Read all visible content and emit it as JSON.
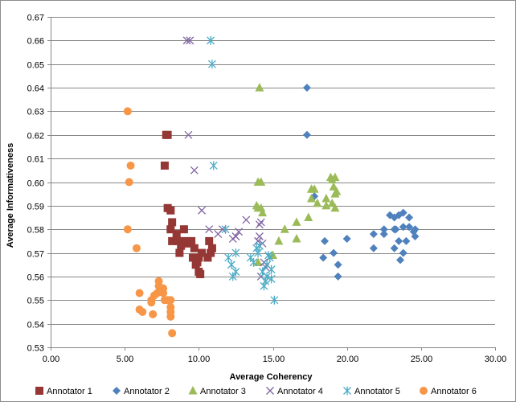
{
  "chart_data": {
    "type": "scatter",
    "title": "",
    "xlabel": "Average Coherency",
    "ylabel": "Average Informativeness",
    "xlim": [
      0,
      30
    ],
    "ylim": [
      0.53,
      0.67
    ],
    "x_ticks": [
      "0.00",
      "5.00",
      "10.00",
      "15.00",
      "20.00",
      "25.00",
      "30.00"
    ],
    "y_ticks": [
      "0.53",
      "0.54",
      "0.55",
      "0.56",
      "0.57",
      "0.58",
      "0.59",
      "0.60",
      "0.61",
      "0.62",
      "0.63",
      "0.64",
      "0.65",
      "0.66",
      "0.67"
    ],
    "grid": "horizontal",
    "legend_position": "bottom",
    "series": [
      {
        "name": "Annotator 1",
        "marker": "square",
        "color": "#953735",
        "points": [
          [
            7.8,
            0.62
          ],
          [
            7.9,
            0.62
          ],
          [
            7.7,
            0.607
          ],
          [
            7.9,
            0.589
          ],
          [
            8.1,
            0.588
          ],
          [
            8.2,
            0.583
          ],
          [
            8.1,
            0.58
          ],
          [
            8.5,
            0.578
          ],
          [
            8.2,
            0.575
          ],
          [
            8.6,
            0.575
          ],
          [
            8.8,
            0.573
          ],
          [
            8.7,
            0.57
          ],
          [
            9.0,
            0.58
          ],
          [
            9.1,
            0.575
          ],
          [
            9.3,
            0.574
          ],
          [
            9.5,
            0.575
          ],
          [
            9.7,
            0.572
          ],
          [
            9.6,
            0.568
          ],
          [
            9.8,
            0.565
          ],
          [
            10.0,
            0.568
          ],
          [
            10.0,
            0.562
          ],
          [
            10.1,
            0.561
          ],
          [
            9.9,
            0.566
          ],
          [
            10.6,
            0.568
          ],
          [
            10.8,
            0.57
          ],
          [
            10.9,
            0.572
          ],
          [
            10.7,
            0.575
          ],
          [
            10.2,
            0.57
          ]
        ]
      },
      {
        "name": "Annotator 2",
        "marker": "diamond",
        "color": "#4f81bd",
        "points": [
          [
            17.3,
            0.64
          ],
          [
            17.3,
            0.62
          ],
          [
            17.8,
            0.594
          ],
          [
            18.5,
            0.575
          ],
          [
            18.4,
            0.568
          ],
          [
            19.1,
            0.57
          ],
          [
            19.4,
            0.565
          ],
          [
            19.4,
            0.56
          ],
          [
            20.0,
            0.576
          ],
          [
            21.8,
            0.578
          ],
          [
            21.8,
            0.572
          ],
          [
            22.5,
            0.58
          ],
          [
            22.5,
            0.578
          ],
          [
            22.9,
            0.586
          ],
          [
            23.2,
            0.585
          ],
          [
            23.5,
            0.586
          ],
          [
            23.8,
            0.587
          ],
          [
            24.2,
            0.585
          ],
          [
            23.2,
            0.58
          ],
          [
            23.8,
            0.581
          ],
          [
            24.2,
            0.581
          ],
          [
            24.5,
            0.579
          ],
          [
            24.6,
            0.58
          ],
          [
            23.5,
            0.575
          ],
          [
            24.0,
            0.575
          ],
          [
            24.6,
            0.577
          ],
          [
            23.2,
            0.572
          ],
          [
            23.8,
            0.57
          ],
          [
            23.6,
            0.567
          ],
          [
            23.3,
            0.58
          ]
        ]
      },
      {
        "name": "Annotator 3",
        "marker": "triangle",
        "color": "#9bbb59",
        "points": [
          [
            14.1,
            0.64
          ],
          [
            14.0,
            0.6
          ],
          [
            14.2,
            0.6
          ],
          [
            13.9,
            0.59
          ],
          [
            14.2,
            0.589
          ],
          [
            14.3,
            0.587
          ],
          [
            15.0,
            0.569
          ],
          [
            15.4,
            0.575
          ],
          [
            15.8,
            0.58
          ],
          [
            16.6,
            0.576
          ],
          [
            16.6,
            0.583
          ],
          [
            17.4,
            0.585
          ],
          [
            17.6,
            0.593
          ],
          [
            17.8,
            0.597
          ],
          [
            18.0,
            0.591
          ],
          [
            17.6,
            0.597
          ],
          [
            18.6,
            0.593
          ],
          [
            18.6,
            0.59
          ],
          [
            18.9,
            0.602
          ],
          [
            19.2,
            0.602
          ],
          [
            19.1,
            0.598
          ],
          [
            19.2,
            0.595
          ],
          [
            19.2,
            0.589
          ],
          [
            19.0,
            0.591
          ],
          [
            19.3,
            0.596
          ],
          [
            19.0,
            0.601
          ],
          [
            14.0,
            0.589
          ],
          [
            14.0,
            0.566
          ]
        ]
      },
      {
        "name": "Annotator 4",
        "marker": "x",
        "color": "#8064a2",
        "points": [
          [
            9.2,
            0.66
          ],
          [
            9.4,
            0.66
          ],
          [
            9.3,
            0.62
          ],
          [
            9.7,
            0.605
          ],
          [
            10.2,
            0.588
          ],
          [
            10.7,
            0.58
          ],
          [
            11.3,
            0.578
          ],
          [
            11.6,
            0.58
          ],
          [
            12.3,
            0.576
          ],
          [
            12.5,
            0.577
          ],
          [
            12.7,
            0.579
          ],
          [
            13.2,
            0.584
          ],
          [
            14.1,
            0.582
          ],
          [
            14.2,
            0.583
          ],
          [
            14.1,
            0.577
          ],
          [
            14.0,
            0.575
          ],
          [
            14.3,
            0.574
          ],
          [
            14.4,
            0.566
          ],
          [
            14.5,
            0.564
          ],
          [
            14.2,
            0.56
          ]
        ]
      },
      {
        "name": "Annotator 5",
        "marker": "star",
        "color": "#4bacc6",
        "points": [
          [
            10.8,
            0.66
          ],
          [
            10.9,
            0.65
          ],
          [
            11.0,
            0.607
          ],
          [
            11.8,
            0.58
          ],
          [
            12.0,
            0.568
          ],
          [
            12.2,
            0.565
          ],
          [
            12.3,
            0.56
          ],
          [
            12.5,
            0.57
          ],
          [
            12.5,
            0.562
          ],
          [
            13.5,
            0.568
          ],
          [
            13.7,
            0.566
          ],
          [
            13.9,
            0.572
          ],
          [
            14.0,
            0.57
          ],
          [
            14.1,
            0.573
          ],
          [
            14.3,
            0.562
          ],
          [
            14.5,
            0.558
          ],
          [
            14.6,
            0.56
          ],
          [
            14.4,
            0.556
          ],
          [
            14.8,
            0.568
          ],
          [
            14.9,
            0.563
          ],
          [
            14.9,
            0.559
          ],
          [
            15.1,
            0.55
          ],
          [
            14.6,
            0.565
          ],
          [
            14.7,
            0.569
          ]
        ]
      },
      {
        "name": "Annotator 6",
        "marker": "circle",
        "color": "#f79646",
        "points": [
          [
            5.2,
            0.63
          ],
          [
            5.4,
            0.607
          ],
          [
            5.3,
            0.6
          ],
          [
            5.2,
            0.58
          ],
          [
            5.8,
            0.572
          ],
          [
            6.0,
            0.553
          ],
          [
            6.0,
            0.546
          ],
          [
            6.2,
            0.545
          ],
          [
            6.8,
            0.55
          ],
          [
            6.8,
            0.549
          ],
          [
            6.9,
            0.544
          ],
          [
            7.0,
            0.552
          ],
          [
            7.2,
            0.553
          ],
          [
            7.3,
            0.558
          ],
          [
            7.3,
            0.556
          ],
          [
            7.6,
            0.555
          ],
          [
            7.6,
            0.553
          ],
          [
            7.7,
            0.55
          ],
          [
            8.1,
            0.55
          ],
          [
            8.1,
            0.547
          ],
          [
            8.1,
            0.545
          ],
          [
            8.1,
            0.543
          ],
          [
            8.2,
            0.536
          ],
          [
            7.9,
            0.55
          ]
        ]
      }
    ]
  }
}
